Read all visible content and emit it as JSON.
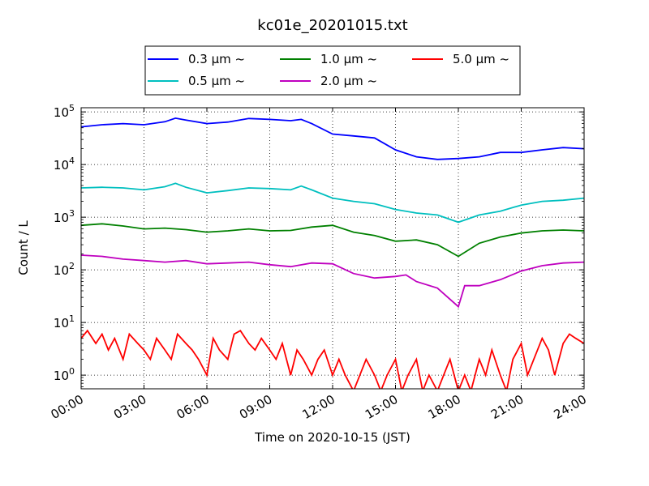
{
  "chart_data": {
    "type": "line",
    "title": "kc01e_20201015.txt",
    "xlabel": "Time on 2020-10-15 (JST)",
    "ylabel": "Count / L",
    "yscale": "log",
    "grid": true,
    "legend_position": "top-center",
    "x_ticks": [
      "00:00",
      "03:00",
      "06:00",
      "09:00",
      "12:00",
      "15:00",
      "18:00",
      "21:00",
      "24:00"
    ],
    "x_tick_hours": [
      0,
      3,
      6,
      9,
      12,
      15,
      18,
      21,
      24
    ],
    "xlim_hours": [
      0,
      24
    ],
    "ylim": [
      0.55,
      120000
    ],
    "y_ticks": [
      {
        "value": 1,
        "base": "10",
        "exp": "0"
      },
      {
        "value": 10,
        "base": "10",
        "exp": "1"
      },
      {
        "value": 100,
        "base": "10",
        "exp": "2"
      },
      {
        "value": 1000,
        "base": "10",
        "exp": "3"
      },
      {
        "value": 10000,
        "base": "10",
        "exp": "4"
      },
      {
        "value": 100000,
        "base": "10",
        "exp": "5"
      }
    ],
    "series": [
      {
        "name": "0.3 μm ~",
        "color": "#0000ff",
        "x": [
          0,
          1,
          2,
          3,
          4,
          4.5,
          5,
          6,
          7,
          8,
          9,
          10,
          10.5,
          11,
          12,
          13,
          14,
          15,
          16,
          17,
          18,
          19,
          20,
          21,
          22,
          23,
          24
        ],
        "y": [
          52000,
          57000,
          60000,
          57000,
          65000,
          76000,
          70000,
          60000,
          64000,
          75000,
          72000,
          68000,
          72000,
          60000,
          38000,
          35000,
          32000,
          19000,
          14000,
          12500,
          13000,
          14000,
          17000,
          17000,
          19000,
          21000,
          20000
        ]
      },
      {
        "name": "0.5 μm ~",
        "color": "#00bfbf",
        "x": [
          0,
          1,
          2,
          3,
          4,
          4.5,
          5,
          6,
          7,
          8,
          9,
          10,
          10.5,
          11,
          12,
          13,
          14,
          15,
          16,
          17,
          18,
          19,
          20,
          21,
          22,
          23,
          24
        ],
        "y": [
          3600,
          3700,
          3600,
          3300,
          3800,
          4400,
          3700,
          2900,
          3200,
          3600,
          3500,
          3300,
          3900,
          3300,
          2300,
          2000,
          1800,
          1400,
          1200,
          1100,
          800,
          1100,
          1300,
          1700,
          2000,
          2100,
          2300
        ]
      },
      {
        "name": "1.0 μm ~",
        "color": "#008000",
        "x": [
          0,
          1,
          2,
          3,
          4,
          5,
          6,
          7,
          8,
          9,
          10,
          11,
          12,
          13,
          14,
          15,
          16,
          17,
          18,
          19,
          20,
          21,
          22,
          23,
          24
        ],
        "y": [
          700,
          750,
          680,
          600,
          620,
          580,
          520,
          550,
          600,
          550,
          560,
          650,
          700,
          520,
          450,
          350,
          370,
          300,
          180,
          320,
          420,
          500,
          550,
          570,
          550
        ]
      },
      {
        "name": "2.0 μm ~",
        "color": "#bf00bf",
        "x": [
          0,
          1,
          2,
          3,
          4,
          5,
          6,
          7,
          8,
          9,
          10,
          11,
          12,
          13,
          14,
          15,
          15.5,
          16,
          17,
          18,
          18.3,
          19,
          20,
          21,
          22,
          23,
          24
        ],
        "y": [
          190,
          180,
          160,
          150,
          140,
          150,
          130,
          135,
          140,
          125,
          115,
          135,
          130,
          85,
          70,
          75,
          80,
          60,
          45,
          20,
          50,
          50,
          65,
          95,
          120,
          135,
          140
        ]
      },
      {
        "name": "5.0 μm ~",
        "color": "#ff0000",
        "x": [
          0,
          0.3,
          0.7,
          1,
          1.3,
          1.6,
          2,
          2.3,
          2.7,
          3,
          3.3,
          3.6,
          4,
          4.3,
          4.6,
          5,
          5.3,
          5.6,
          6,
          6.3,
          6.6,
          7,
          7.3,
          7.6,
          8,
          8.3,
          8.6,
          9,
          9.3,
          9.6,
          10,
          10.3,
          10.6,
          11,
          11.3,
          11.6,
          12,
          12.3,
          12.6,
          13,
          13.3,
          13.6,
          14,
          14.3,
          14.6,
          15,
          15.3,
          15.6,
          16,
          16.3,
          16.6,
          17,
          17.3,
          17.6,
          18,
          18.3,
          18.6,
          19,
          19.3,
          19.6,
          20,
          20.3,
          20.6,
          21,
          21.3,
          21.6,
          22,
          22.3,
          22.6,
          23,
          23.3,
          23.6,
          24
        ],
        "y": [
          5,
          7,
          4,
          6,
          3,
          5,
          2,
          6,
          4,
          3,
          2,
          5,
          3,
          2,
          6,
          4,
          3,
          2,
          1,
          5,
          3,
          2,
          6,
          7,
          4,
          3,
          5,
          3,
          2,
          4,
          1,
          3,
          2,
          1,
          2,
          3,
          1,
          2,
          1,
          0.5,
          1,
          2,
          1,
          0.5,
          1,
          2,
          0.5,
          1,
          2,
          0.5,
          1,
          0.5,
          1,
          2,
          0.5,
          1,
          0.5,
          2,
          1,
          3,
          1,
          0.5,
          2,
          4,
          1,
          2,
          5,
          3,
          1,
          4,
          6,
          5,
          4
        ]
      }
    ]
  }
}
